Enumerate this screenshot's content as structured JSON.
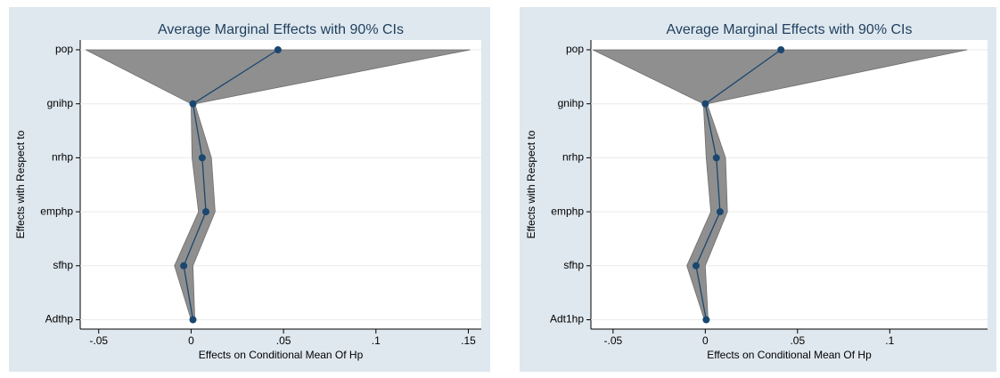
{
  "chart_data": [
    {
      "type": "ci_profile",
      "title": "Average Marginal Effects with 90% CIs",
      "x_label": "Effects on Conditional Mean Of Hp",
      "y_label": "Effects with Respect to",
      "categories": [
        "pop",
        "gnihp",
        "nrhp",
        "emphp",
        "sfhp",
        "Adthp"
      ],
      "values": [
        0.047,
        0.001,
        0.006,
        0.008,
        -0.004,
        0.001
      ],
      "ci_low": [
        -0.057,
        0.0,
        0.0005,
        0.004,
        -0.009,
        0.0
      ],
      "ci_high": [
        0.151,
        0.002,
        0.011,
        0.013,
        0.001,
        0.002
      ],
      "color": "#1a476f",
      "band_color": "#8f8f8f",
      "xlim": [
        -0.06,
        0.157
      ],
      "xticks": [
        {
          "value": -0.05,
          "label": "-.05"
        },
        0,
        {
          "value": 0.05,
          "label": ".05"
        },
        {
          "value": 0.1,
          "label": ".1"
        },
        {
          "value": 0.15,
          "label": ".15"
        }
      ],
      "grid": true
    },
    {
      "type": "ci_profile",
      "title": "Average Marginal Effects with 90% CIs",
      "x_label": "Effects on Conditional Mean Of Hp",
      "y_label": "Effects with Respect to",
      "categories": [
        "pop",
        "gnihp",
        "nrhp",
        "emphp",
        "sfhp",
        "Adt1hp"
      ],
      "values": [
        0.041,
        0.0,
        0.006,
        0.008,
        -0.005,
        0.0005
      ],
      "ci_low": [
        -0.061,
        -0.001,
        0.0005,
        0.003,
        -0.01,
        -0.0005
      ],
      "ci_high": [
        0.142,
        0.001,
        0.011,
        0.012,
        0.0,
        0.0015
      ],
      "color": "#1a476f",
      "band_color": "#8f8f8f",
      "xlim": [
        -0.062,
        0.153
      ],
      "xticks": [
        {
          "value": -0.05,
          "label": "-.05"
        },
        0,
        {
          "value": 0.05,
          "label": ".05"
        },
        {
          "value": 0.1,
          "label": ".1"
        }
      ],
      "grid": true
    }
  ]
}
